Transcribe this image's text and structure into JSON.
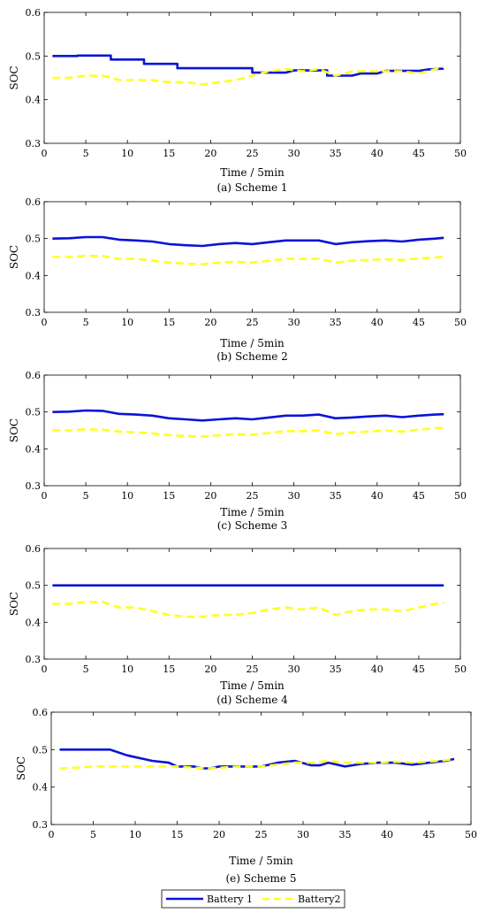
{
  "figure": {
    "legend": {
      "entries": [
        {
          "label": "Battery  1",
          "color": "#0a14d6",
          "style": "solid"
        },
        {
          "label": "Battery2",
          "color": "#ffff22",
          "style": "dashed"
        }
      ]
    }
  },
  "chart_data": [
    {
      "type": "line",
      "caption": "(a) Scheme 1",
      "xlabel": "Time / 5min",
      "ylabel": "SOC",
      "xlim": [
        0,
        50
      ],
      "ylim": [
        0.3,
        0.6
      ],
      "xticks": [
        "0",
        "5",
        "10",
        "15",
        "20",
        "25",
        "30",
        "35",
        "40",
        "45",
        "50"
      ],
      "yticks": [
        "0.3",
        "0.4",
        "0.5",
        "0.6"
      ],
      "series": [
        {
          "name": "Battery  1",
          "color": "#0a14d6",
          "x": [
            1,
            4,
            4,
            8,
            8,
            12,
            12,
            16,
            16,
            25,
            25,
            28,
            29,
            30,
            32,
            34,
            34,
            37,
            38,
            40,
            41,
            43,
            43,
            45,
            46,
            48
          ],
          "y": [
            0.5,
            0.5,
            0.501,
            0.501,
            0.492,
            0.492,
            0.482,
            0.482,
            0.472,
            0.472,
            0.462,
            0.462,
            0.462,
            0.467,
            0.467,
            0.467,
            0.455,
            0.455,
            0.46,
            0.46,
            0.466,
            0.466,
            0.466,
            0.466,
            0.469,
            0.471
          ]
        },
        {
          "name": "Battery2",
          "color": "#ffff22",
          "x": [
            1,
            3,
            5,
            7,
            9,
            11,
            13,
            15,
            17,
            19,
            21,
            23,
            25,
            27,
            29,
            31,
            33,
            35,
            37,
            39,
            41,
            43,
            45,
            47,
            48
          ],
          "y": [
            0.45,
            0.45,
            0.455,
            0.455,
            0.445,
            0.445,
            0.445,
            0.44,
            0.44,
            0.435,
            0.44,
            0.445,
            0.455,
            0.465,
            0.47,
            0.465,
            0.47,
            0.455,
            0.465,
            0.465,
            0.465,
            0.465,
            0.46,
            0.47,
            0.475
          ]
        }
      ]
    },
    {
      "type": "line",
      "caption": "(b) Scheme 2",
      "xlabel": "Time / 5min",
      "ylabel": "SOC",
      "xlim": [
        0,
        50
      ],
      "ylim": [
        0.3,
        0.6
      ],
      "xticks": [
        "0",
        "5",
        "10",
        "15",
        "20",
        "25",
        "30",
        "35",
        "40",
        "45",
        "50"
      ],
      "yticks": [
        "0.3",
        "0.4",
        "0.5",
        "0.6"
      ],
      "series": [
        {
          "name": "Battery  1",
          "color": "#0a14d6",
          "x": [
            1,
            3,
            5,
            7,
            9,
            11,
            13,
            15,
            17,
            19,
            21,
            23,
            25,
            27,
            29,
            31,
            33,
            35,
            37,
            39,
            41,
            43,
            45,
            47,
            48
          ],
          "y": [
            0.5,
            0.501,
            0.504,
            0.504,
            0.497,
            0.495,
            0.492,
            0.485,
            0.482,
            0.48,
            0.485,
            0.488,
            0.485,
            0.49,
            0.495,
            0.495,
            0.495,
            0.485,
            0.49,
            0.493,
            0.495,
            0.492,
            0.497,
            0.5,
            0.502
          ]
        },
        {
          "name": "Battery2",
          "color": "#ffff22",
          "x": [
            1,
            3,
            5,
            7,
            9,
            11,
            13,
            15,
            17,
            19,
            21,
            23,
            25,
            27,
            29,
            31,
            33,
            35,
            37,
            39,
            41,
            43,
            45,
            47,
            48
          ],
          "y": [
            0.45,
            0.45,
            0.453,
            0.453,
            0.445,
            0.445,
            0.44,
            0.435,
            0.432,
            0.43,
            0.435,
            0.437,
            0.435,
            0.44,
            0.445,
            0.445,
            0.445,
            0.435,
            0.44,
            0.442,
            0.444,
            0.442,
            0.446,
            0.449,
            0.451
          ]
        }
      ]
    },
    {
      "type": "line",
      "caption": "(c) Scheme 3",
      "xlabel": "Time / 5min",
      "ylabel": "SOC",
      "xlim": [
        0,
        50
      ],
      "ylim": [
        0.3,
        0.6
      ],
      "xticks": [
        "0",
        "5",
        "10",
        "15",
        "20",
        "25",
        "30",
        "35",
        "40",
        "45",
        "50"
      ],
      "yticks": [
        "0.3",
        "0.4",
        "0.5",
        "0.6"
      ],
      "series": [
        {
          "name": "Battery  1",
          "color": "#0a14d6",
          "x": [
            1,
            3,
            5,
            7,
            9,
            11,
            13,
            15,
            17,
            19,
            21,
            23,
            25,
            27,
            29,
            31,
            33,
            35,
            37,
            39,
            41,
            43,
            45,
            47,
            48
          ],
          "y": [
            0.5,
            0.501,
            0.504,
            0.503,
            0.495,
            0.493,
            0.49,
            0.483,
            0.48,
            0.477,
            0.48,
            0.483,
            0.48,
            0.485,
            0.49,
            0.49,
            0.493,
            0.483,
            0.485,
            0.488,
            0.49,
            0.486,
            0.49,
            0.493,
            0.494
          ]
        },
        {
          "name": "Battery2",
          "color": "#ffff22",
          "x": [
            1,
            3,
            5,
            7,
            9,
            11,
            13,
            15,
            17,
            19,
            21,
            23,
            25,
            27,
            29,
            31,
            33,
            35,
            37,
            39,
            41,
            43,
            45,
            47,
            48
          ],
          "y": [
            0.45,
            0.45,
            0.453,
            0.452,
            0.447,
            0.445,
            0.442,
            0.437,
            0.435,
            0.433,
            0.437,
            0.44,
            0.438,
            0.443,
            0.448,
            0.448,
            0.45,
            0.44,
            0.445,
            0.447,
            0.45,
            0.447,
            0.452,
            0.456,
            0.457
          ]
        }
      ]
    },
    {
      "type": "line",
      "caption": "(d) Scheme 4",
      "xlabel": "Time / 5min",
      "ylabel": "SOC",
      "xlim": [
        0,
        50
      ],
      "ylim": [
        0.3,
        0.6
      ],
      "xticks": [
        "0",
        "5",
        "10",
        "15",
        "20",
        "25",
        "30",
        "35",
        "40",
        "45",
        "50"
      ],
      "yticks": [
        "0.3",
        "0.4",
        "0.5",
        "0.6"
      ],
      "series": [
        {
          "name": "Battery  1",
          "color": "#0a14d6",
          "x": [
            1,
            48
          ],
          "y": [
            0.5,
            0.5
          ]
        },
        {
          "name": "Battery2",
          "color": "#ffff22",
          "x": [
            1,
            3,
            5,
            7,
            9,
            11,
            13,
            15,
            17,
            19,
            21,
            23,
            25,
            27,
            29,
            31,
            33,
            35,
            37,
            39,
            41,
            43,
            45,
            47,
            48
          ],
          "y": [
            0.45,
            0.45,
            0.455,
            0.455,
            0.44,
            0.44,
            0.43,
            0.42,
            0.415,
            0.415,
            0.42,
            0.42,
            0.425,
            0.435,
            0.44,
            0.435,
            0.44,
            0.42,
            0.43,
            0.435,
            0.435,
            0.43,
            0.44,
            0.45,
            0.453
          ]
        }
      ]
    },
    {
      "type": "line",
      "caption": "(e) Scheme 5",
      "xlabel": "Time / 5min",
      "ylabel": "SOC",
      "xlim": [
        0,
        50
      ],
      "ylim": [
        0.3,
        0.6
      ],
      "xticks": [
        "0",
        "5",
        "10",
        "15",
        "20",
        "25",
        "30",
        "35",
        "40",
        "45",
        "50"
      ],
      "yticks": [
        "0.3",
        "0.4",
        "0.5",
        "0.6"
      ],
      "series": [
        {
          "name": "Battery  1",
          "color": "#0a14d6",
          "x": [
            1,
            7,
            9,
            10,
            11,
            12,
            14,
            15,
            17,
            18,
            19,
            20,
            22,
            25,
            27,
            29,
            31,
            32,
            33,
            35,
            37,
            39,
            41,
            43,
            45,
            47,
            48
          ],
          "y": [
            0.5,
            0.5,
            0.485,
            0.48,
            0.475,
            0.47,
            0.465,
            0.455,
            0.455,
            0.45,
            0.45,
            0.455,
            0.455,
            0.455,
            0.465,
            0.47,
            0.458,
            0.458,
            0.465,
            0.455,
            0.462,
            0.465,
            0.465,
            0.46,
            0.465,
            0.47,
            0.475
          ]
        },
        {
          "name": "Battery2",
          "color": "#ffff22",
          "x": [
            1,
            3,
            5,
            7,
            9,
            11,
            13,
            15,
            17,
            19,
            21,
            23,
            25,
            27,
            29,
            31,
            33,
            35,
            37,
            39,
            41,
            43,
            45,
            47,
            48
          ],
          "y": [
            0.45,
            0.452,
            0.455,
            0.455,
            0.455,
            0.455,
            0.455,
            0.455,
            0.452,
            0.45,
            0.453,
            0.455,
            0.455,
            0.46,
            0.465,
            0.465,
            0.47,
            0.465,
            0.465,
            0.465,
            0.468,
            0.465,
            0.468,
            0.472,
            0.475
          ]
        }
      ]
    }
  ]
}
